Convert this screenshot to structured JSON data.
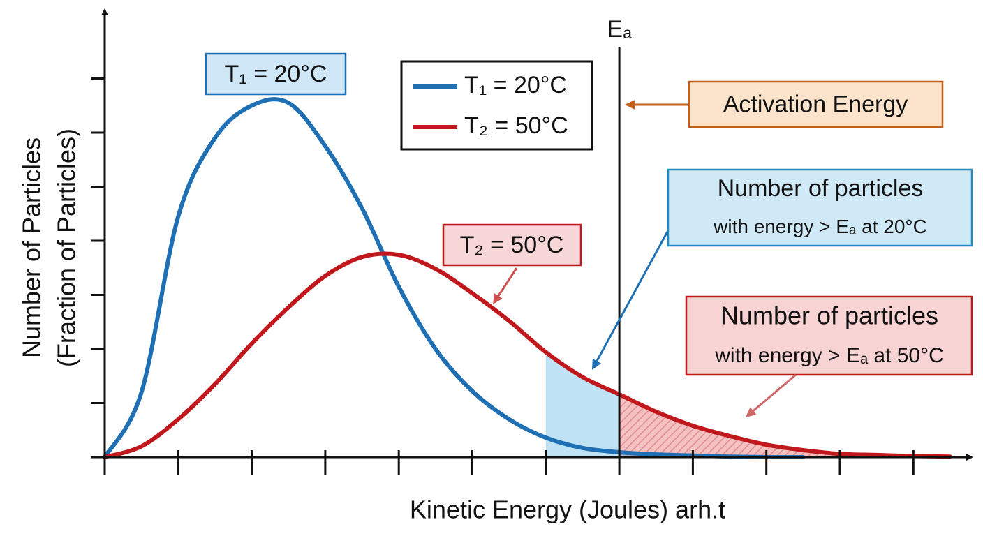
{
  "chart_data": {
    "type": "line",
    "x_label": "Kinetic Energy (Joules) arh.t",
    "y_label_lines": [
      "Number of Particles",
      "(Fraction of Particles)"
    ],
    "x": [
      0,
      0.5,
      1,
      1.5,
      2,
      2.5,
      3,
      3.5,
      4,
      4.5,
      5,
      5.5,
      6,
      6.5,
      7,
      7.5,
      8,
      8.5,
      9,
      9.5,
      10,
      10.5,
      11,
      11.5
    ],
    "series": [
      {
        "name": "T₁ = 20°C",
        "color": "#1f6fb4",
        "values": [
          0,
          1.2,
          4.45,
          5.9,
          6.5,
          6.55,
          5.75,
          4.6,
          3.15,
          2.0,
          1.22,
          0.7,
          0.36,
          0.17,
          0.09,
          0.05,
          0.03,
          0.01,
          0,
          0,
          null,
          null,
          null,
          null
        ]
      },
      {
        "name": "T₂ = 50°C",
        "color": "#c0181c",
        "values": [
          0,
          0.2,
          0.7,
          1.35,
          2.1,
          2.77,
          3.35,
          3.7,
          3.74,
          3.48,
          3.03,
          2.52,
          1.94,
          1.48,
          1.16,
          0.84,
          0.58,
          0.39,
          0.23,
          0.13,
          0.06,
          0.04,
          0.02,
          0.01
        ]
      }
    ],
    "xlim": [
      0,
      11.8
    ],
    "ylim": [
      0,
      8.2
    ],
    "xticks": [
      0,
      1,
      2,
      3,
      4,
      5,
      6,
      7,
      8,
      9,
      10,
      11
    ],
    "yticks": [
      0,
      1,
      2,
      3,
      4,
      5,
      6,
      7
    ],
    "activation_energy": {
      "label": "Eₐ",
      "x": 7
    },
    "shade_from": 6,
    "annotations": [
      {
        "lines": [
          "T₁ = 20°C"
        ]
      },
      {
        "lines": [
          "T₂ = 50°C"
        ]
      },
      {
        "lines": [
          "Activation Energy"
        ]
      },
      {
        "lines": [
          "Number of particles",
          "with energy > Eₐ at 20°C"
        ]
      },
      {
        "lines": [
          "Number of particles",
          "with energy > Eₐ at 50°C"
        ]
      }
    ]
  }
}
